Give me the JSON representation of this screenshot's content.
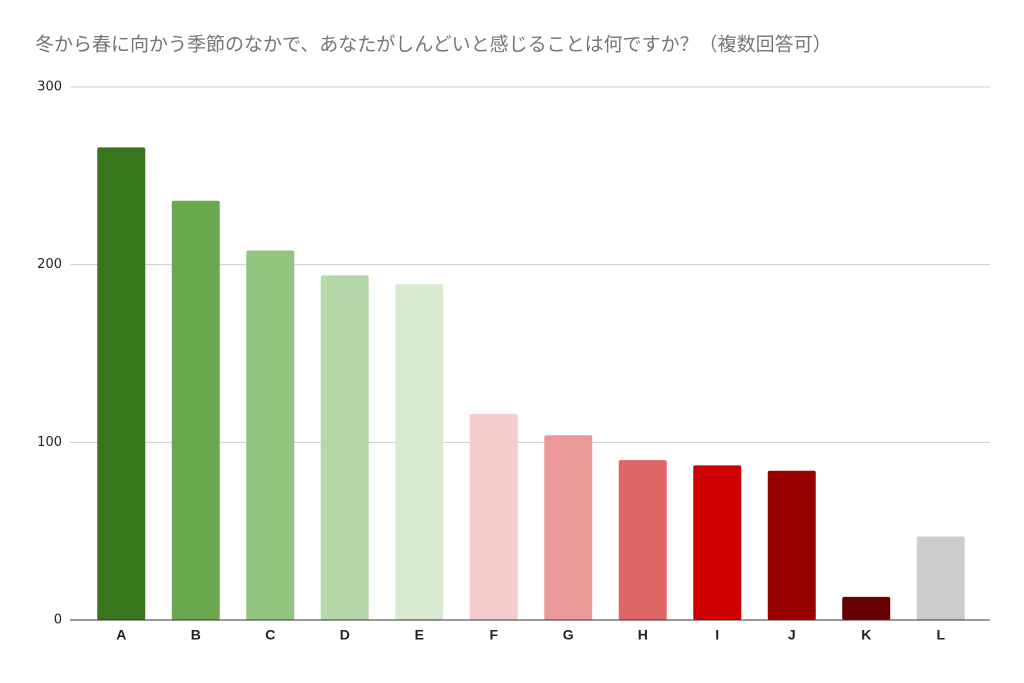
{
  "chart_data": {
    "type": "bar",
    "title": "冬から春に向かう季節のなかで、あなたがしんどいと感じることは何ですか？（複数回答可）",
    "categories": [
      "A",
      "B",
      "C",
      "D",
      "E",
      "F",
      "G",
      "H",
      "I",
      "J",
      "K",
      "L"
    ],
    "values": [
      266,
      236,
      208,
      194,
      189,
      116,
      104,
      90,
      87,
      84,
      13,
      47
    ],
    "colors": [
      "#38761d",
      "#6aa84f",
      "#93c47d",
      "#b6d7a8",
      "#d9ead3",
      "#f4cccc",
      "#ea9999",
      "#e06666",
      "#cc0000",
      "#990000",
      "#660000",
      "#cccccc"
    ],
    "ylim": [
      0,
      300
    ],
    "yticks": [
      0,
      100,
      200,
      300
    ],
    "grid": true
  }
}
